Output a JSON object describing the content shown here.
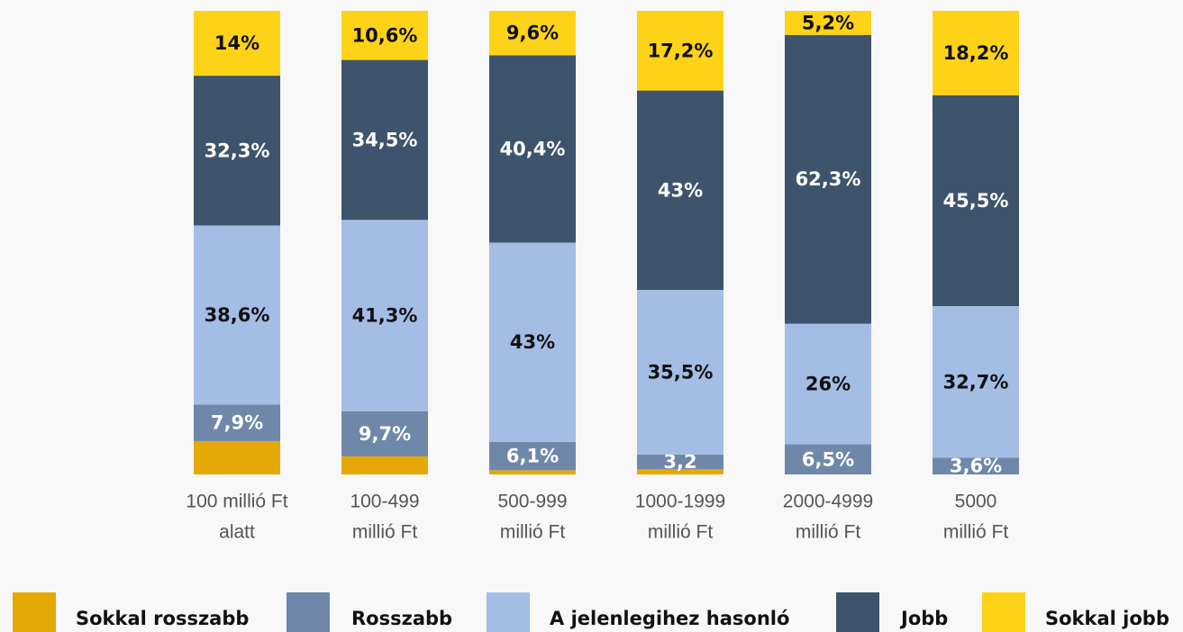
{
  "chart_data": {
    "type": "stacked_bar",
    "categories": [
      [
        "100 millió Ft",
        "alatt"
      ],
      [
        "100-499",
        "millió Ft"
      ],
      [
        "500-999",
        "millió Ft"
      ],
      [
        "1000-1999",
        "millió Ft"
      ],
      [
        "2000-4999",
        "millió Ft"
      ],
      [
        "5000",
        "millió Ft"
      ]
    ],
    "series": [
      {
        "name": "Sokkal rosszabb",
        "color": "#e5a906",
        "values": [
          7.2,
          3.9,
          0.9,
          1.1,
          0,
          0
        ]
      },
      {
        "name": "Rosszabb",
        "color": "#6f87a9",
        "values": [
          7.9,
          9.7,
          6.1,
          3.2,
          6.5,
          3.6
        ],
        "value_labels": [
          "7,9%",
          "9,7%",
          "6,1%",
          "3,2",
          "6,5%",
          "3,6%"
        ]
      },
      {
        "name": "A jelenlegihez hasonló",
        "color": "#a3bde4",
        "values": [
          38.6,
          41.3,
          43,
          35.5,
          26,
          32.7
        ],
        "value_labels": [
          "38,6%",
          "41,3%",
          "43%",
          "35,5%",
          "26%",
          "32,7%"
        ]
      },
      {
        "name": "Jobb",
        "color": "#3e546c",
        "values": [
          32.3,
          34.5,
          40.4,
          43,
          62.3,
          45.5
        ],
        "value_labels": [
          "32,3%",
          "34,5%",
          "40,4%",
          "43%",
          "62,3%",
          "45,5%"
        ]
      },
      {
        "name": "Sokkal jobb",
        "color": "#fed317",
        "values": [
          14,
          10.6,
          9.6,
          17.2,
          5.2,
          18.2
        ],
        "value_labels": [
          "14%",
          "10,6%",
          "9,6%",
          "17,2%",
          "5,2%",
          "18,2%"
        ]
      }
    ]
  }
}
